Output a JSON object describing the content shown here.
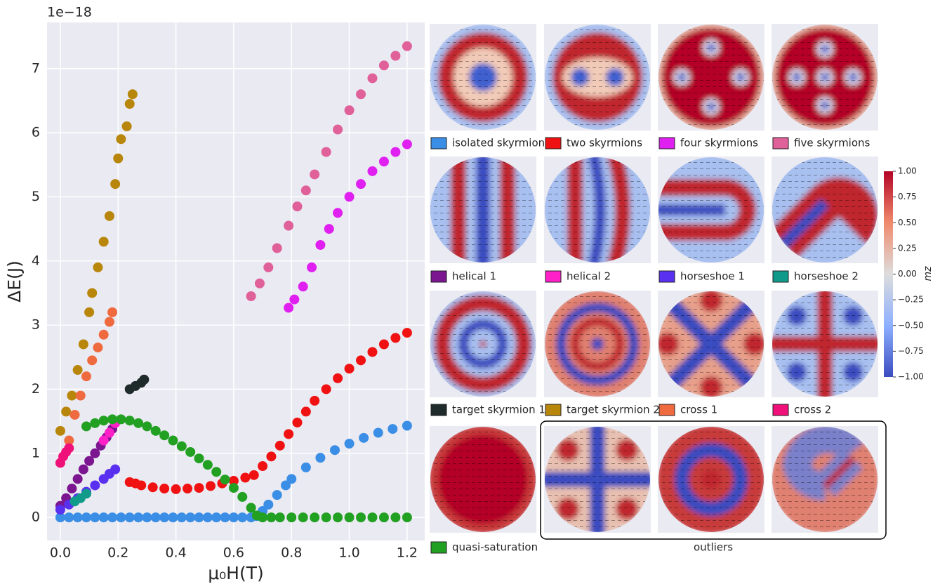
{
  "chart_data": {
    "type": "scatter",
    "y_offset_label": "1e−18",
    "xlabel": "μ₀H(T)",
    "ylabel": "ΔE(J)",
    "xlim": [
      -0.046,
      1.261
    ],
    "ylim": [
      -0.36,
      7.72
    ],
    "xticks": [
      {
        "value": 0,
        "label": "0.0"
      },
      {
        "value": 0.2,
        "label": "0.2"
      },
      {
        "value": 0.4,
        "label": "0.4"
      },
      {
        "value": 0.6,
        "label": "0.6"
      },
      {
        "value": 0.8,
        "label": "0.8"
      },
      {
        "value": 1,
        "label": "1.0"
      },
      {
        "value": 1.2,
        "label": "1.2"
      }
    ],
    "yticks": [
      0,
      1,
      2,
      3,
      4,
      5,
      6,
      7
    ],
    "grid": true,
    "series": [
      {
        "name": "isolated skyrmion",
        "color": "#3a8ee6",
        "x": [
          0,
          0.03,
          0.06,
          0.09,
          0.12,
          0.15,
          0.18,
          0.21,
          0.24,
          0.27,
          0.3,
          0.33,
          0.36,
          0.39,
          0.42,
          0.45,
          0.48,
          0.51,
          0.54,
          0.57,
          0.6,
          0.63,
          0.66,
          0.68,
          0.7,
          0.72,
          0.75,
          0.78,
          0.8,
          0.85,
          0.9,
          0.95,
          1.0,
          1.05,
          1.1,
          1.15,
          1.2
        ],
        "values": [
          0,
          0,
          0,
          0,
          0,
          0,
          0,
          0,
          0,
          0,
          0,
          0,
          0,
          0,
          0,
          0,
          0,
          0,
          0,
          0,
          0,
          0,
          0,
          0.02,
          0.1,
          0.2,
          0.35,
          0.5,
          0.6,
          0.78,
          0.93,
          1.05,
          1.15,
          1.24,
          1.32,
          1.38,
          1.43
        ]
      },
      {
        "name": "two skyrmions",
        "color": "#f01212",
        "x": [
          0.24,
          0.26,
          0.28,
          0.32,
          0.36,
          0.4,
          0.44,
          0.48,
          0.52,
          0.56,
          0.6,
          0.64,
          0.67,
          0.7,
          0.73,
          0.76,
          0.79,
          0.82,
          0.85,
          0.88,
          0.92,
          0.96,
          1.0,
          1.04,
          1.08,
          1.12,
          1.16,
          1.2
        ],
        "values": [
          0.55,
          0.53,
          0.5,
          0.47,
          0.45,
          0.44,
          0.45,
          0.46,
          0.49,
          0.53,
          0.57,
          0.62,
          0.66,
          0.8,
          0.95,
          1.12,
          1.3,
          1.48,
          1.65,
          1.82,
          2.0,
          2.17,
          2.32,
          2.45,
          2.58,
          2.7,
          2.8,
          2.88
        ]
      },
      {
        "name": "four skyrmions",
        "color": "#e020f0",
        "x": [
          0.79,
          0.81,
          0.84,
          0.87,
          0.9,
          0.93,
          0.96,
          1.0,
          1.04,
          1.08,
          1.12,
          1.16,
          1.2
        ],
        "values": [
          3.27,
          3.4,
          3.6,
          3.9,
          4.25,
          4.5,
          4.75,
          5.0,
          5.2,
          5.4,
          5.55,
          5.7,
          5.82
        ]
      },
      {
        "name": "five skyrmions",
        "color": "#e0609a",
        "x": [
          0.66,
          0.69,
          0.72,
          0.75,
          0.79,
          0.82,
          0.85,
          0.88,
          0.92,
          0.96,
          1.0,
          1.04,
          1.08,
          1.12,
          1.16,
          1.2
        ],
        "values": [
          3.45,
          3.65,
          3.9,
          4.2,
          4.55,
          4.85,
          5.1,
          5.35,
          5.7,
          6.05,
          6.35,
          6.6,
          6.85,
          7.05,
          7.2,
          7.35
        ]
      },
      {
        "name": "helical 1",
        "color": "#7b1590",
        "x": [
          0,
          0.02,
          0.04,
          0.06,
          0.08,
          0.1,
          0.12,
          0.14,
          0.16,
          0.18
        ],
        "values": [
          0.18,
          0.3,
          0.45,
          0.6,
          0.75,
          0.88,
          1.0,
          1.12,
          1.25,
          1.38
        ]
      },
      {
        "name": "helical 2",
        "color": "#ff20c8",
        "x": [
          0.15,
          0.17,
          0.19
        ],
        "values": [
          1.2,
          1.32,
          1.47
        ]
      },
      {
        "name": "horseshoe 1",
        "color": "#5a30f0",
        "x": [
          0,
          0.03,
          0.06,
          0.09,
          0.12,
          0.15,
          0.17,
          0.19
        ],
        "values": [
          0.12,
          0.2,
          0.3,
          0.4,
          0.5,
          0.6,
          0.68,
          0.75
        ]
      },
      {
        "name": "horseshoe 2",
        "color": "#109a8a",
        "x": [
          0.05,
          0.07,
          0.09
        ],
        "values": [
          0.25,
          0.3,
          0.37
        ]
      },
      {
        "name": "target skyrmion 1",
        "color": "#1f2a2a",
        "x": [
          0.24,
          0.26,
          0.28,
          0.29
        ],
        "values": [
          2.0,
          2.05,
          2.1,
          2.15
        ]
      },
      {
        "name": "target skyrmion 2",
        "color": "#b8860b",
        "x": [
          0,
          0.02,
          0.04,
          0.06,
          0.08,
          0.1,
          0.11,
          0.13,
          0.15,
          0.17,
          0.19,
          0.2,
          0.21,
          0.23,
          0.24,
          0.25
        ],
        "values": [
          1.35,
          1.65,
          1.9,
          2.3,
          2.7,
          3.2,
          3.5,
          3.9,
          4.3,
          4.7,
          5.2,
          5.6,
          5.9,
          6.1,
          6.45,
          6.6
        ]
      },
      {
        "name": "cross 1",
        "color": "#f06a40",
        "x": [
          0.03,
          0.05,
          0.07,
          0.09,
          0.11,
          0.13,
          0.15,
          0.17,
          0.18
        ],
        "values": [
          1.2,
          1.6,
          1.9,
          2.2,
          2.45,
          2.65,
          2.85,
          3.05,
          3.2
        ]
      },
      {
        "name": "cross 2",
        "color": "#f0107a",
        "x": [
          0,
          0.01,
          0.02,
          0.03
        ],
        "values": [
          0.85,
          0.95,
          1.02,
          1.08
        ]
      },
      {
        "name": "quasi-saturation",
        "color": "#22a022",
        "x": [
          0.09,
          0.12,
          0.15,
          0.18,
          0.21,
          0.24,
          0.27,
          0.3,
          0.33,
          0.36,
          0.39,
          0.42,
          0.45,
          0.48,
          0.51,
          0.54,
          0.57,
          0.6,
          0.63,
          0.66,
          0.68,
          0.7,
          0.73,
          0.76,
          0.8,
          0.84,
          0.88,
          0.92,
          0.96,
          1.0,
          1.04,
          1.08,
          1.12,
          1.16,
          1.2
        ],
        "values": [
          1.42,
          1.47,
          1.51,
          1.53,
          1.53,
          1.51,
          1.47,
          1.42,
          1.35,
          1.28,
          1.2,
          1.11,
          1.02,
          0.92,
          0.82,
          0.71,
          0.59,
          0.46,
          0.32,
          0.15,
          0.03,
          0,
          0,
          0,
          0,
          0,
          0,
          0,
          0,
          0,
          0,
          0,
          0,
          0,
          0
        ]
      }
    ],
    "outliers_label": "outliers",
    "colorbar": {
      "label": "mz",
      "lim": [
        -1,
        1
      ],
      "ticks": [
        {
          "value": 1,
          "label": "1.00"
        },
        {
          "value": 0.75,
          "label": "0.75"
        },
        {
          "value": 0.5,
          "label": "0.50"
        },
        {
          "value": 0.25,
          "label": "0.25"
        },
        {
          "value": 0,
          "label": "0.00"
        },
        {
          "value": -0.25,
          "label": "−0.25"
        },
        {
          "value": -0.5,
          "label": "−0.50"
        },
        {
          "value": -0.75,
          "label": "−0.75"
        },
        {
          "value": -1,
          "label": "−1.00"
        }
      ]
    }
  }
}
